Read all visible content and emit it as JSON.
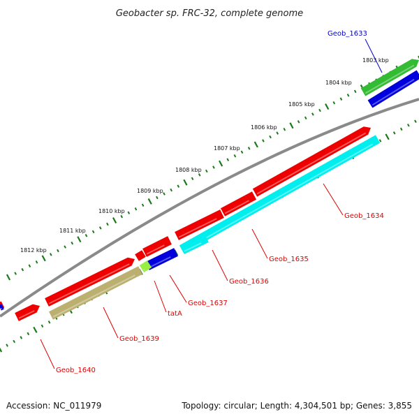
{
  "title": "Geobacter sp. FRC-32, complete genome",
  "footer": {
    "accession": "Accession: NC_011979",
    "info": "Topology: circular; Length: 4,304,501 bp; Genes: 3,855"
  },
  "colors": {
    "background": "#ffffff",
    "backbone": "#8a8a8a",
    "tick": "#1a7a1a",
    "label_red": "#e00000",
    "label_blue": "#0000cc"
  },
  "tick_labels": [
    "1803 kbp",
    "1804 kbp",
    "1805 kbp",
    "1806 kbp",
    "1807 kbp",
    "1808 kbp",
    "1809 kbp",
    "1810 kbp",
    "1811 kbp",
    "1812 kbp"
  ],
  "genes": [
    {
      "name": "Geob_1633",
      "color": "#0000cc"
    },
    {
      "name": "Geob_1634",
      "color": "#e00000"
    },
    {
      "name": "Geob_1635",
      "color": "#e00000"
    },
    {
      "name": "Geob_1636",
      "color": "#e00000"
    },
    {
      "name": "Geob_1637",
      "color": "#e00000"
    },
    {
      "name": "tatA",
      "color": "#e00000"
    },
    {
      "name": "Geob_1639",
      "color": "#e00000"
    },
    {
      "name": "Geob_1640",
      "color": "#e00000"
    }
  ],
  "features": [
    {
      "kind": "gene",
      "color": "#33bb33"
    },
    {
      "kind": "cds",
      "color": "#0000dd"
    },
    {
      "kind": "gene",
      "color": "#ee0000"
    },
    {
      "kind": "cds",
      "color": "#00eeee"
    },
    {
      "kind": "gene",
      "color": "#ee0000"
    },
    {
      "kind": "gene",
      "color": "#ee0000"
    },
    {
      "kind": "gene",
      "color": "#ee0000"
    },
    {
      "kind": "cds",
      "color": "#00eeee"
    },
    {
      "kind": "gene",
      "color": "#ee0000"
    },
    {
      "kind": "cds",
      "color": "#0000dd"
    },
    {
      "kind": "gene",
      "color": "#ee0000"
    },
    {
      "kind": "cds",
      "color": "#99ee44"
    },
    {
      "kind": "gene",
      "color": "#ee0000"
    },
    {
      "kind": "cds",
      "color": "#bbb070"
    },
    {
      "kind": "gene",
      "color": "#ee0000"
    },
    {
      "kind": "cds",
      "color": "#0000dd"
    }
  ]
}
